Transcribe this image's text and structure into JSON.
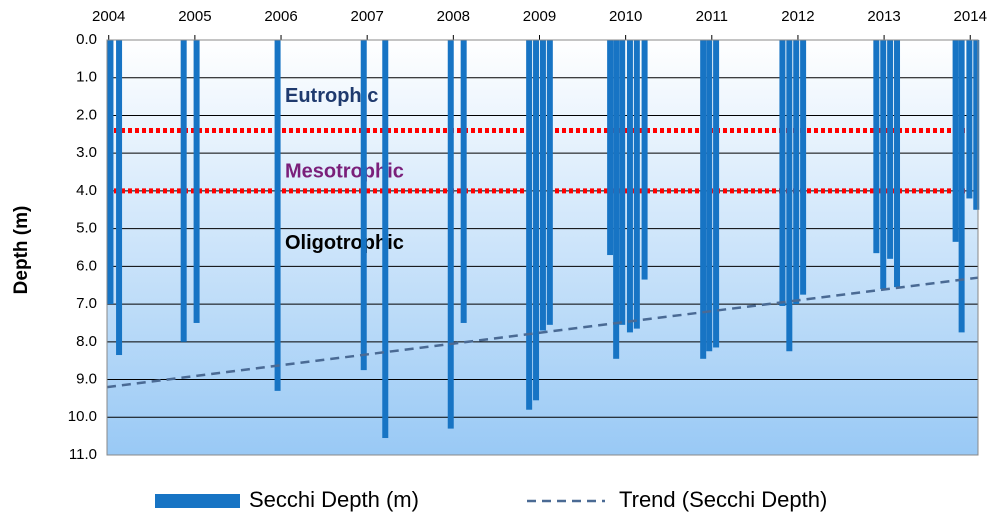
{
  "chart_data": {
    "type": "bar",
    "y_axis_label": "Depth (m)",
    "xlim": [
      2003.98,
      2014.09
    ],
    "xticks": [
      2004,
      2005,
      2006,
      2007,
      2008,
      2009,
      2010,
      2011,
      2012,
      2013,
      2014
    ],
    "ylim": [
      0,
      11
    ],
    "y_inverted": true,
    "yticks": [
      {
        "value": 0,
        "label": "0.0"
      },
      {
        "value": 1,
        "label": "1.0"
      },
      {
        "value": 2,
        "label": "2.0"
      },
      {
        "value": 3,
        "label": "3.0"
      },
      {
        "value": 4,
        "label": "4.0"
      },
      {
        "value": 5,
        "label": "5.0"
      },
      {
        "value": 6,
        "label": "6.0"
      },
      {
        "value": 7,
        "label": "7.0"
      },
      {
        "value": 8,
        "label": "8.0"
      },
      {
        "value": 9,
        "label": "9.0"
      },
      {
        "value": 10,
        "label": "10.0"
      },
      {
        "value": 11,
        "label": "11.0"
      }
    ],
    "grid": true,
    "series": [
      {
        "name": "Secchi Depth (m)",
        "type": "bar",
        "color": "#1774c4",
        "x": [
          2004.02,
          2004.12,
          2004.87,
          2005.02,
          2005.96,
          2006.96,
          2007.21,
          2007.97,
          2008.12,
          2008.88,
          2008.96,
          2009.04,
          2009.12,
          2009.82,
          2009.89,
          2009.96,
          2010.05,
          2010.13,
          2010.22,
          2010.9,
          2010.97,
          2011.05,
          2011.82,
          2011.9,
          2011.98,
          2012.06,
          2012.91,
          2012.99,
          2013.07,
          2013.15,
          2013.83,
          2013.9,
          2013.99,
          2014.07
        ],
        "values": [
          7.0,
          8.35,
          8.0,
          7.5,
          9.3,
          8.75,
          10.55,
          10.3,
          7.5,
          9.8,
          9.55,
          7.7,
          7.55,
          5.7,
          8.45,
          7.55,
          7.75,
          7.65,
          6.35,
          8.45,
          8.25,
          8.15,
          7.05,
          8.25,
          7.0,
          6.75,
          5.65,
          6.6,
          5.8,
          6.55,
          5.35,
          7.75,
          4.2,
          4.5
        ]
      },
      {
        "name": "Trend (Secchi Depth)",
        "type": "line",
        "color": "#4a6a94",
        "x": [
          2003.98,
          2014.09
        ],
        "values": [
          9.2,
          6.3
        ]
      }
    ],
    "thresholds": [
      {
        "value": 2.4,
        "color": "#ff0000"
      },
      {
        "value": 4.0,
        "color": "#ff0000"
      }
    ],
    "zones": [
      {
        "label": "Eutrophic",
        "depth": 1.5,
        "color": "#1f3a6e"
      },
      {
        "label": "Mesotrophic",
        "depth": 3.5,
        "color": "#7a1f7a"
      },
      {
        "label": "Oligotrophic",
        "depth": 5.4,
        "color": "#000000"
      }
    ],
    "legend": "bottom"
  }
}
